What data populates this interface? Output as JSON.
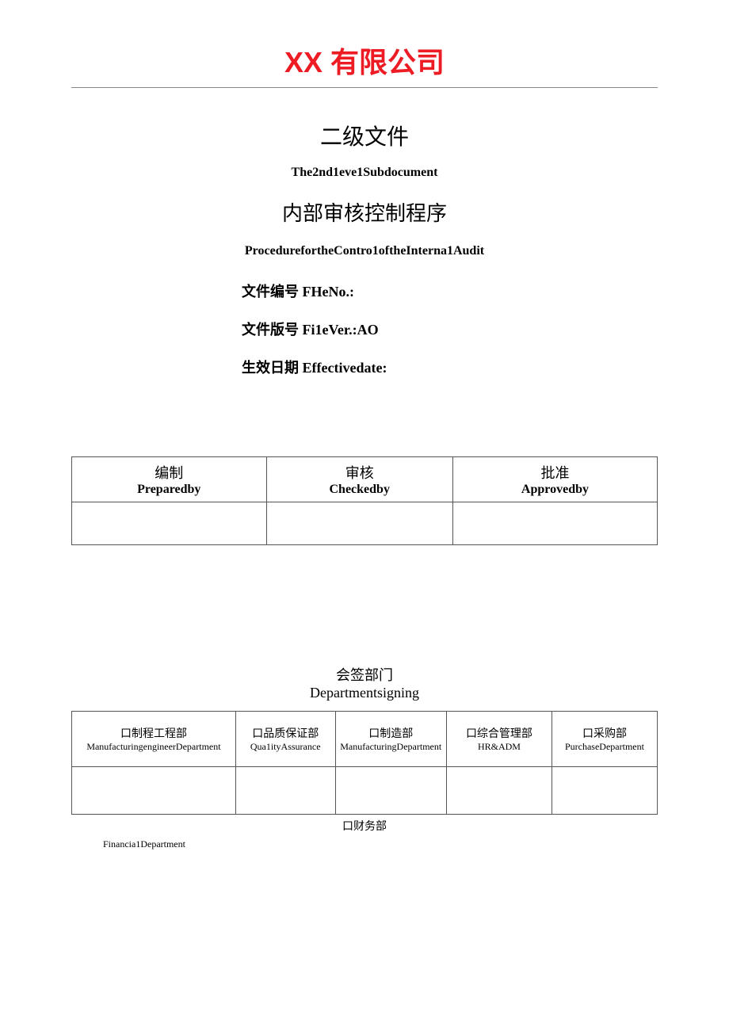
{
  "company_title": "XX 有限公司",
  "doc_level": {
    "cn": "二级文件",
    "en": "The2nd1eve1Subdocument"
  },
  "doc_title": {
    "cn": "内部审核控制程序",
    "en": "ProcedurefortheContro1oftheInterna1Audit"
  },
  "meta": {
    "file_no": "文件编号 FHeNo.:",
    "file_ver": "文件版号 Fi1eVer.:AO",
    "effective_date": "生效日期 Effectivedate:"
  },
  "approval_table": {
    "columns": [
      {
        "cn": "编制",
        "en": "Preparedby"
      },
      {
        "cn": "审核",
        "en": "Checkedby"
      },
      {
        "cn": "批准",
        "en": "Approvedby"
      }
    ]
  },
  "signing_section": {
    "title_cn": "会签部门",
    "title_en": "Departmentsigning",
    "departments": [
      {
        "cn": "口制程工程部",
        "en": "ManufacturingengineerDepartment"
      },
      {
        "cn": "口品质保证部",
        "en": "Qua1ityAssurance"
      },
      {
        "cn": "口制造部",
        "en": "ManufacturingDepartment"
      },
      {
        "cn": "口综合管理部",
        "en": "HR&ADM"
      },
      {
        "cn": "口采购部",
        "en": "PurchaseDepartment"
      }
    ],
    "financial": {
      "cn": "口财务部",
      "en": "Financia1Department"
    }
  },
  "colors": {
    "company_title": "#ed1c24",
    "text": "#000000",
    "border": "#555555",
    "hr": "#888888",
    "background": "#ffffff"
  }
}
